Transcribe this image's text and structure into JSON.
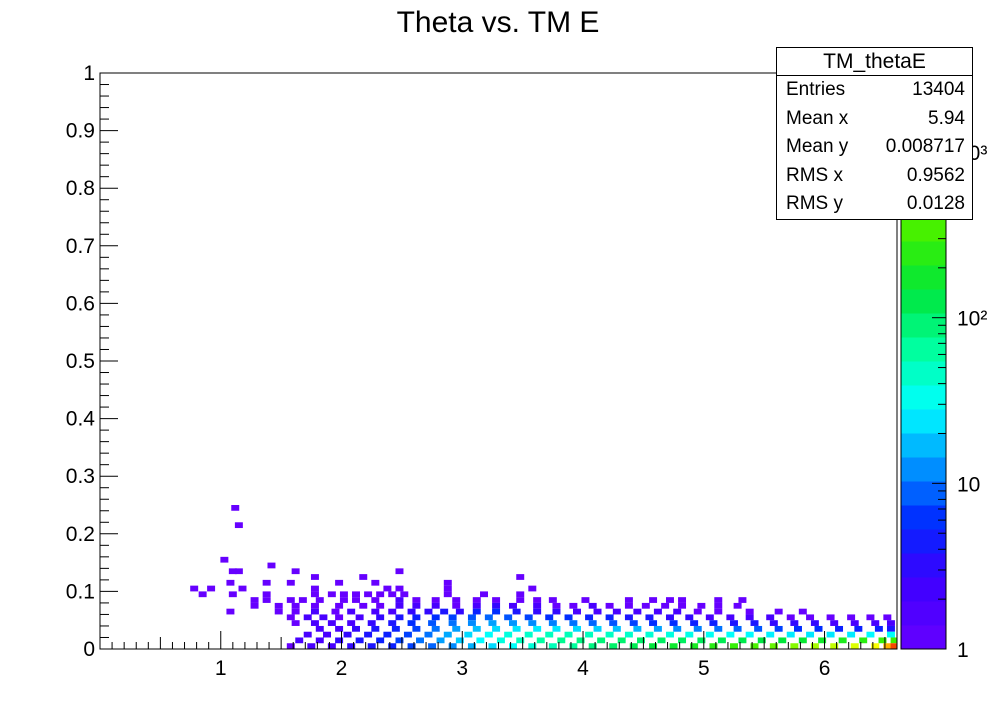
{
  "chart_data": {
    "type": "heatmap",
    "title": "Theta vs. TM E",
    "xlabel": "",
    "ylabel": "",
    "xlim": [
      0,
      6.6
    ],
    "ylim": [
      0,
      1
    ],
    "x_ticks": [
      1,
      2,
      3,
      4,
      5,
      6
    ],
    "x_tick_labels": [
      "1",
      "2",
      "3",
      "4",
      "5",
      "6"
    ],
    "y_ticks": [
      0,
      0.1,
      0.2,
      0.3,
      0.4,
      0.5,
      0.6,
      0.7,
      0.8,
      0.9,
      1
    ],
    "y_tick_labels": [
      "0",
      "0.1",
      "0.2",
      "0.3",
      "0.4",
      "0.5",
      "0.6",
      "0.7",
      "0.8",
      "0.9",
      "1"
    ],
    "bin_width_x": 0.066,
    "bin_width_y": 0.01,
    "z_scale": "log",
    "z_range": [
      1,
      3000
    ],
    "z_tick_labels": [
      "1",
      "10",
      "10²",
      "10³"
    ],
    "cells": [
      [
        1.12,
        0.245,
        1
      ],
      [
        1.15,
        0.215,
        1
      ],
      [
        1.03,
        0.155,
        1
      ],
      [
        1.1,
        0.135,
        1
      ],
      [
        1.15,
        0.135,
        1
      ],
      [
        1.42,
        0.145,
        1
      ],
      [
        1.62,
        0.135,
        1
      ],
      [
        2.48,
        0.135,
        1
      ],
      [
        3.48,
        0.125,
        1
      ],
      [
        1.08,
        0.115,
        1
      ],
      [
        1.38,
        0.115,
        1
      ],
      [
        1.58,
        0.115,
        1
      ],
      [
        1.78,
        0.125,
        1
      ],
      [
        1.98,
        0.115,
        1
      ],
      [
        2.18,
        0.125,
        1
      ],
      [
        2.28,
        0.115,
        1
      ],
      [
        2.88,
        0.115,
        1
      ],
      [
        0.78,
        0.105,
        1
      ],
      [
        0.92,
        0.105,
        1
      ],
      [
        1.18,
        0.105,
        1
      ],
      [
        1.78,
        0.105,
        1
      ],
      [
        2.38,
        0.105,
        1
      ],
      [
        2.48,
        0.105,
        1
      ],
      [
        2.88,
        0.105,
        1
      ],
      [
        3.58,
        0.105,
        1
      ],
      [
        0.85,
        0.095,
        1
      ],
      [
        1.1,
        0.095,
        1
      ],
      [
        1.38,
        0.095,
        1
      ],
      [
        1.78,
        0.095,
        1
      ],
      [
        1.92,
        0.095,
        1
      ],
      [
        2.02,
        0.095,
        1
      ],
      [
        2.12,
        0.095,
        1
      ],
      [
        2.22,
        0.095,
        1
      ],
      [
        2.32,
        0.095,
        1
      ],
      [
        2.42,
        0.095,
        1
      ],
      [
        2.52,
        0.095,
        1
      ],
      [
        2.88,
        0.095,
        1
      ],
      [
        3.18,
        0.095,
        1
      ],
      [
        3.48,
        0.095,
        1
      ],
      [
        1.28,
        0.085,
        1
      ],
      [
        1.38,
        0.085,
        1
      ],
      [
        1.58,
        0.085,
        1
      ],
      [
        1.68,
        0.085,
        1
      ],
      [
        1.82,
        0.085,
        1
      ],
      [
        2.02,
        0.085,
        1
      ],
      [
        2.12,
        0.085,
        1
      ],
      [
        2.28,
        0.085,
        1
      ],
      [
        2.48,
        0.085,
        2
      ],
      [
        2.62,
        0.085,
        1
      ],
      [
        2.78,
        0.085,
        1
      ],
      [
        2.95,
        0.085,
        1
      ],
      [
        3.12,
        0.085,
        1
      ],
      [
        3.28,
        0.085,
        1
      ],
      [
        3.48,
        0.085,
        1
      ],
      [
        3.62,
        0.085,
        1
      ],
      [
        3.75,
        0.085,
        1
      ],
      [
        4.02,
        0.085,
        1
      ],
      [
        4.38,
        0.085,
        1
      ],
      [
        4.58,
        0.085,
        1
      ],
      [
        4.72,
        0.085,
        1
      ],
      [
        4.82,
        0.085,
        1
      ],
      [
        5.12,
        0.085,
        1
      ],
      [
        5.32,
        0.085,
        1
      ],
      [
        1.28,
        0.075,
        1
      ],
      [
        1.48,
        0.075,
        1
      ],
      [
        1.62,
        0.075,
        1
      ],
      [
        1.78,
        0.075,
        1
      ],
      [
        1.98,
        0.075,
        1
      ],
      [
        2.18,
        0.075,
        1
      ],
      [
        2.32,
        0.075,
        1
      ],
      [
        2.48,
        0.075,
        2
      ],
      [
        2.62,
        0.075,
        2
      ],
      [
        2.78,
        0.075,
        2
      ],
      [
        2.95,
        0.075,
        1
      ],
      [
        3.12,
        0.075,
        2
      ],
      [
        3.28,
        0.075,
        3
      ],
      [
        3.42,
        0.075,
        2
      ],
      [
        3.62,
        0.075,
        2
      ],
      [
        3.78,
        0.075,
        1
      ],
      [
        3.92,
        0.075,
        1
      ],
      [
        4.08,
        0.075,
        2
      ],
      [
        4.22,
        0.075,
        1
      ],
      [
        4.38,
        0.075,
        1
      ],
      [
        4.52,
        0.075,
        1
      ],
      [
        4.68,
        0.075,
        1
      ],
      [
        4.82,
        0.075,
        1
      ],
      [
        4.98,
        0.075,
        1
      ],
      [
        5.12,
        0.075,
        1
      ],
      [
        5.28,
        0.075,
        1
      ],
      [
        1.08,
        0.065,
        1
      ],
      [
        1.48,
        0.065,
        1
      ],
      [
        1.62,
        0.065,
        1
      ],
      [
        1.78,
        0.065,
        2
      ],
      [
        1.95,
        0.065,
        1
      ],
      [
        2.08,
        0.065,
        2
      ],
      [
        2.28,
        0.065,
        2
      ],
      [
        2.42,
        0.065,
        2
      ],
      [
        2.58,
        0.065,
        3
      ],
      [
        2.72,
        0.065,
        3
      ],
      [
        2.85,
        0.065,
        4
      ],
      [
        2.98,
        0.065,
        3
      ],
      [
        3.12,
        0.065,
        5
      ],
      [
        3.28,
        0.065,
        6
      ],
      [
        3.45,
        0.065,
        4
      ],
      [
        3.62,
        0.065,
        3
      ],
      [
        3.78,
        0.065,
        3
      ],
      [
        3.95,
        0.065,
        2
      ],
      [
        4.12,
        0.065,
        2
      ],
      [
        4.28,
        0.065,
        2
      ],
      [
        4.45,
        0.065,
        2
      ],
      [
        4.62,
        0.065,
        2
      ],
      [
        4.78,
        0.065,
        2
      ],
      [
        4.95,
        0.065,
        1
      ],
      [
        5.12,
        0.065,
        1
      ],
      [
        5.38,
        0.065,
        1
      ],
      [
        5.62,
        0.065,
        1
      ],
      [
        5.82,
        0.065,
        1
      ],
      [
        1.58,
        0.055,
        1
      ],
      [
        1.72,
        0.055,
        2
      ],
      [
        1.85,
        0.055,
        2
      ],
      [
        1.98,
        0.055,
        1
      ],
      [
        2.15,
        0.055,
        2
      ],
      [
        2.32,
        0.055,
        3
      ],
      [
        2.48,
        0.055,
        4
      ],
      [
        2.62,
        0.055,
        5
      ],
      [
        2.78,
        0.055,
        6
      ],
      [
        2.92,
        0.055,
        7
      ],
      [
        3.08,
        0.055,
        8
      ],
      [
        3.22,
        0.055,
        9
      ],
      [
        3.38,
        0.055,
        8
      ],
      [
        3.55,
        0.055,
        7
      ],
      [
        3.72,
        0.055,
        6
      ],
      [
        3.88,
        0.055,
        6
      ],
      [
        4.05,
        0.055,
        5
      ],
      [
        4.22,
        0.055,
        5
      ],
      [
        4.38,
        0.055,
        4
      ],
      [
        4.55,
        0.055,
        4
      ],
      [
        4.72,
        0.055,
        3
      ],
      [
        4.88,
        0.055,
        3
      ],
      [
        5.05,
        0.055,
        2
      ],
      [
        5.22,
        0.055,
        2
      ],
      [
        5.38,
        0.055,
        2
      ],
      [
        5.55,
        0.055,
        2
      ],
      [
        5.72,
        0.055,
        1
      ],
      [
        5.88,
        0.055,
        1
      ],
      [
        6.05,
        0.055,
        1
      ],
      [
        6.22,
        0.055,
        1
      ],
      [
        6.38,
        0.055,
        1
      ],
      [
        6.52,
        0.055,
        1
      ],
      [
        1.62,
        0.045,
        1
      ],
      [
        1.78,
        0.045,
        2
      ],
      [
        1.92,
        0.045,
        2
      ],
      [
        2.08,
        0.045,
        2
      ],
      [
        2.25,
        0.045,
        3
      ],
      [
        2.42,
        0.045,
        4
      ],
      [
        2.58,
        0.045,
        6
      ],
      [
        2.75,
        0.045,
        8
      ],
      [
        2.92,
        0.045,
        10
      ],
      [
        3.08,
        0.045,
        12
      ],
      [
        3.25,
        0.045,
        14
      ],
      [
        3.42,
        0.045,
        13
      ],
      [
        3.58,
        0.045,
        12
      ],
      [
        3.75,
        0.045,
        11
      ],
      [
        3.92,
        0.045,
        10
      ],
      [
        4.08,
        0.045,
        9
      ],
      [
        4.25,
        0.045,
        8
      ],
      [
        4.42,
        0.045,
        7
      ],
      [
        4.58,
        0.045,
        6
      ],
      [
        4.75,
        0.045,
        6
      ],
      [
        4.92,
        0.045,
        5
      ],
      [
        5.08,
        0.045,
        5
      ],
      [
        5.25,
        0.045,
        4
      ],
      [
        5.42,
        0.045,
        4
      ],
      [
        5.58,
        0.045,
        3
      ],
      [
        5.75,
        0.045,
        3
      ],
      [
        5.92,
        0.045,
        3
      ],
      [
        6.08,
        0.045,
        2
      ],
      [
        6.25,
        0.045,
        2
      ],
      [
        6.42,
        0.045,
        2
      ],
      [
        6.55,
        0.045,
        2
      ],
      [
        1.82,
        0.035,
        2
      ],
      [
        1.98,
        0.035,
        2
      ],
      [
        2.12,
        0.035,
        3
      ],
      [
        2.28,
        0.035,
        4
      ],
      [
        2.45,
        0.035,
        5
      ],
      [
        2.62,
        0.035,
        7
      ],
      [
        2.78,
        0.035,
        10
      ],
      [
        2.95,
        0.035,
        14
      ],
      [
        3.12,
        0.035,
        18
      ],
      [
        3.28,
        0.035,
        22
      ],
      [
        3.45,
        0.035,
        24
      ],
      [
        3.62,
        0.035,
        25
      ],
      [
        3.78,
        0.035,
        24
      ],
      [
        3.95,
        0.035,
        22
      ],
      [
        4.12,
        0.035,
        20
      ],
      [
        4.28,
        0.035,
        18
      ],
      [
        4.45,
        0.035,
        16
      ],
      [
        4.62,
        0.035,
        14
      ],
      [
        4.78,
        0.035,
        12
      ],
      [
        4.95,
        0.035,
        11
      ],
      [
        5.12,
        0.035,
        10
      ],
      [
        5.28,
        0.035,
        9
      ],
      [
        5.45,
        0.035,
        8
      ],
      [
        5.62,
        0.035,
        7
      ],
      [
        5.78,
        0.035,
        6
      ],
      [
        5.95,
        0.035,
        6
      ],
      [
        6.12,
        0.035,
        5
      ],
      [
        6.28,
        0.035,
        5
      ],
      [
        6.45,
        0.035,
        5
      ],
      [
        6.55,
        0.035,
        4
      ],
      [
        1.72,
        0.025,
        2
      ],
      [
        1.88,
        0.025,
        2
      ],
      [
        2.05,
        0.025,
        3
      ],
      [
        2.22,
        0.025,
        4
      ],
      [
        2.38,
        0.025,
        5
      ],
      [
        2.55,
        0.025,
        7
      ],
      [
        2.72,
        0.025,
        10
      ],
      [
        2.88,
        0.025,
        15
      ],
      [
        3.05,
        0.025,
        22
      ],
      [
        3.22,
        0.025,
        30
      ],
      [
        3.38,
        0.025,
        38
      ],
      [
        3.55,
        0.025,
        45
      ],
      [
        3.72,
        0.025,
        50
      ],
      [
        3.88,
        0.025,
        52
      ],
      [
        4.05,
        0.025,
        50
      ],
      [
        4.22,
        0.025,
        48
      ],
      [
        4.38,
        0.025,
        45
      ],
      [
        4.55,
        0.025,
        42
      ],
      [
        4.72,
        0.025,
        38
      ],
      [
        4.88,
        0.025,
        35
      ],
      [
        5.05,
        0.025,
        32
      ],
      [
        5.22,
        0.025,
        30
      ],
      [
        5.38,
        0.025,
        28
      ],
      [
        5.55,
        0.025,
        26
      ],
      [
        5.72,
        0.025,
        25
      ],
      [
        5.88,
        0.025,
        24
      ],
      [
        6.05,
        0.025,
        24
      ],
      [
        6.22,
        0.025,
        25
      ],
      [
        6.38,
        0.025,
        28
      ],
      [
        6.55,
        0.025,
        30
      ],
      [
        1.65,
        0.015,
        2
      ],
      [
        1.82,
        0.015,
        2
      ],
      [
        1.98,
        0.015,
        3
      ],
      [
        2.15,
        0.015,
        4
      ],
      [
        2.32,
        0.015,
        5
      ],
      [
        2.48,
        0.015,
        7
      ],
      [
        2.65,
        0.015,
        10
      ],
      [
        2.82,
        0.015,
        14
      ],
      [
        2.98,
        0.015,
        20
      ],
      [
        3.15,
        0.015,
        28
      ],
      [
        3.32,
        0.015,
        38
      ],
      [
        3.48,
        0.015,
        50
      ],
      [
        3.65,
        0.015,
        62
      ],
      [
        3.82,
        0.015,
        72
      ],
      [
        3.98,
        0.015,
        80
      ],
      [
        4.15,
        0.015,
        88
      ],
      [
        4.32,
        0.015,
        95
      ],
      [
        4.48,
        0.015,
        100
      ],
      [
        4.65,
        0.015,
        105
      ],
      [
        4.82,
        0.015,
        108
      ],
      [
        4.98,
        0.015,
        112
      ],
      [
        5.15,
        0.015,
        118
      ],
      [
        5.32,
        0.015,
        125
      ],
      [
        5.48,
        0.015,
        135
      ],
      [
        5.65,
        0.015,
        145
      ],
      [
        5.82,
        0.015,
        160
      ],
      [
        5.98,
        0.015,
        180
      ],
      [
        6.15,
        0.015,
        210
      ],
      [
        6.32,
        0.015,
        250
      ],
      [
        6.48,
        0.015,
        300
      ],
      [
        6.58,
        0.015,
        320
      ],
      [
        1.58,
        0.005,
        1
      ],
      [
        1.75,
        0.005,
        2
      ],
      [
        1.92,
        0.005,
        2
      ],
      [
        2.08,
        0.005,
        3
      ],
      [
        2.25,
        0.005,
        4
      ],
      [
        2.42,
        0.005,
        5
      ],
      [
        2.58,
        0.005,
        7
      ],
      [
        2.75,
        0.005,
        9
      ],
      [
        2.92,
        0.005,
        12
      ],
      [
        3.08,
        0.005,
        16
      ],
      [
        3.25,
        0.005,
        22
      ],
      [
        3.42,
        0.005,
        30
      ],
      [
        3.58,
        0.005,
        40
      ],
      [
        3.75,
        0.005,
        52
      ],
      [
        3.92,
        0.005,
        66
      ],
      [
        4.08,
        0.005,
        82
      ],
      [
        4.25,
        0.005,
        100
      ],
      [
        4.42,
        0.005,
        120
      ],
      [
        4.58,
        0.005,
        145
      ],
      [
        4.75,
        0.005,
        170
      ],
      [
        4.92,
        0.005,
        200
      ],
      [
        5.08,
        0.005,
        240
      ],
      [
        5.25,
        0.005,
        290
      ],
      [
        5.42,
        0.005,
        350
      ],
      [
        5.58,
        0.005,
        420
      ],
      [
        5.75,
        0.005,
        520
      ],
      [
        5.92,
        0.005,
        650
      ],
      [
        6.08,
        0.005,
        800
      ],
      [
        6.25,
        0.005,
        1000
      ],
      [
        6.42,
        0.005,
        1300
      ],
      [
        6.52,
        0.005,
        2000
      ],
      [
        6.58,
        0.005,
        2600
      ]
    ]
  },
  "stats_box": {
    "name": "TM_thetaE",
    "rows": [
      {
        "label": "Entries",
        "value": "13404"
      },
      {
        "label": "Mean x",
        "value": "5.94"
      },
      {
        "label": "Mean y",
        "value": "0.008717"
      },
      {
        "label": "RMS x",
        "value": "0.9562"
      },
      {
        "label": "RMS y",
        "value": "0.0128"
      }
    ]
  }
}
